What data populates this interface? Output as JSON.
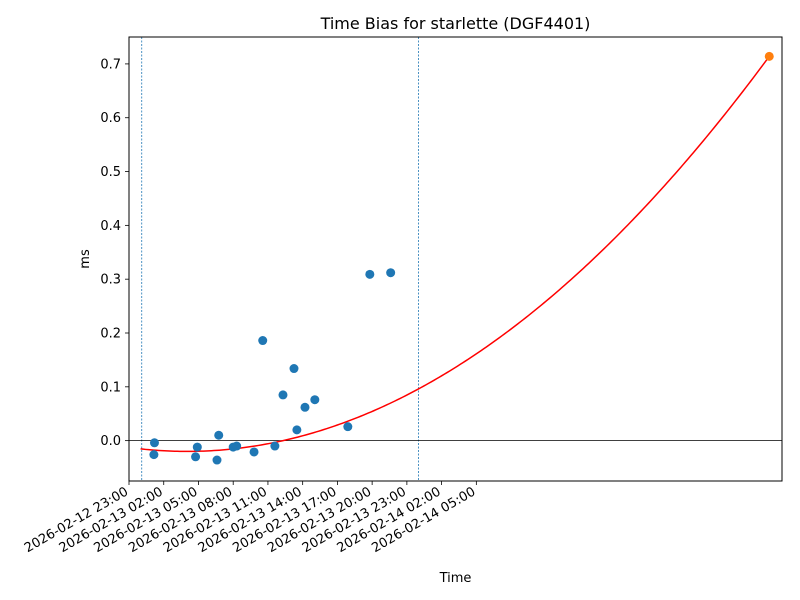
{
  "chart_data": {
    "type": "scatter",
    "title": "Time Bias for starlette (DGF4401)",
    "xlabel": "Time",
    "ylabel": "ms",
    "xlim": [
      "2026-02-12T23:00",
      "2026-02-15T07:24"
    ],
    "ylim": [
      -0.075,
      0.75
    ],
    "x_ticks": [
      {
        "value": "2026-02-12T23:00",
        "label": "2026-02-12 23:00"
      },
      {
        "value": "2026-02-13T02:00",
        "label": "2026-02-13 02:00"
      },
      {
        "value": "2026-02-13T05:00",
        "label": "2026-02-13 05:00"
      },
      {
        "value": "2026-02-13T08:00",
        "label": "2026-02-13 08:00"
      },
      {
        "value": "2026-02-13T11:00",
        "label": "2026-02-13 11:00"
      },
      {
        "value": "2026-02-13T14:00",
        "label": "2026-02-13 14:00"
      },
      {
        "value": "2026-02-13T17:00",
        "label": "2026-02-13 17:00"
      },
      {
        "value": "2026-02-13T20:00",
        "label": "2026-02-13 20:00"
      },
      {
        "value": "2026-02-13T23:00",
        "label": "2026-02-13 23:00"
      },
      {
        "value": "2026-02-14T02:00",
        "label": "2026-02-14 02:00"
      },
      {
        "value": "2026-02-14T05:00",
        "label": "2026-02-14 05:00"
      }
    ],
    "y_ticks": [
      {
        "value": 0.0,
        "label": "0.0"
      },
      {
        "value": 0.1,
        "label": "0.1"
      },
      {
        "value": 0.2,
        "label": "0.2"
      },
      {
        "value": 0.3,
        "label": "0.3"
      },
      {
        "value": 0.4,
        "label": "0.4"
      },
      {
        "value": 0.5,
        "label": "0.5"
      },
      {
        "value": 0.6,
        "label": "0.6"
      },
      {
        "value": 0.7,
        "label": "0.7"
      }
    ],
    "observations": {
      "color": "#1f77b4",
      "points": [
        {
          "x": "2026-02-13T01:09",
          "y": -0.026
        },
        {
          "x": "2026-02-13T01:12",
          "y": -0.004
        },
        {
          "x": "2026-02-13T04:45",
          "y": -0.03
        },
        {
          "x": "2026-02-13T04:54",
          "y": -0.012
        },
        {
          "x": "2026-02-13T06:36",
          "y": -0.036
        },
        {
          "x": "2026-02-13T06:45",
          "y": 0.01
        },
        {
          "x": "2026-02-13T08:00",
          "y": -0.012
        },
        {
          "x": "2026-02-13T08:18",
          "y": -0.01
        },
        {
          "x": "2026-02-13T09:48",
          "y": -0.021
        },
        {
          "x": "2026-02-13T10:33",
          "y": 0.186
        },
        {
          "x": "2026-02-13T11:36",
          "y": -0.01
        },
        {
          "x": "2026-02-13T12:18",
          "y": 0.085
        },
        {
          "x": "2026-02-13T13:15",
          "y": 0.134
        },
        {
          "x": "2026-02-13T13:30",
          "y": 0.02
        },
        {
          "x": "2026-02-13T14:12",
          "y": 0.062
        },
        {
          "x": "2026-02-13T15:03",
          "y": 0.076
        },
        {
          "x": "2026-02-13T17:54",
          "y": 0.026
        },
        {
          "x": "2026-02-13T19:48",
          "y": 0.309
        },
        {
          "x": "2026-02-13T21:36",
          "y": 0.312
        }
      ]
    },
    "prediction": {
      "color": "#ff7f0e",
      "points": [
        {
          "x": "2026-02-15T06:18",
          "y": 0.714
        }
      ]
    },
    "fit": {
      "type": "quadratic",
      "color": "#ff0000",
      "x_start": "2026-02-13T00:00",
      "x_end": "2026-02-15T06:18",
      "vertex": {
        "x": "2026-02-13T04:00",
        "y": -0.02
      },
      "end_y": 0.714
    },
    "vlines": {
      "color": "#1f77b4",
      "x": [
        "2026-02-13T00:06",
        "2026-02-14T00:00"
      ]
    },
    "hline": {
      "y": 0,
      "color": "#000000"
    },
    "grid": false
  }
}
